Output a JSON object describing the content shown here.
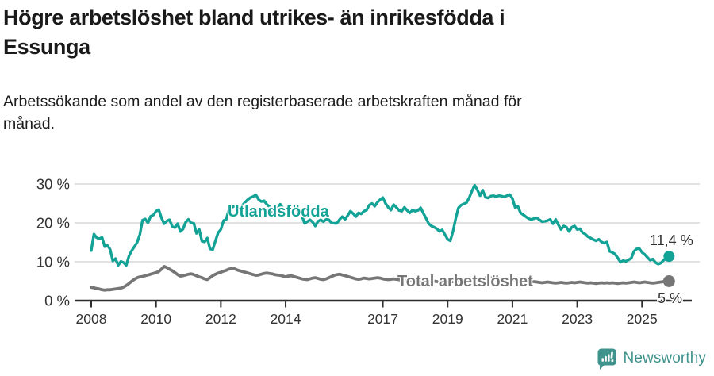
{
  "header": {
    "title_line1": "Högre arbetslöshet bland utrikes- än inrikesfödda i",
    "title_line2": "Essunga",
    "subtitle_line1": "Arbetssökande som andel av den registerbaserade arbetskraften månad för",
    "subtitle_line2": "månad."
  },
  "footer": {
    "brand": "Newsworthy",
    "logo_icon": "newsworthy-speech-bubble-chart-icon"
  },
  "colors": {
    "series_foreign": "#13a296",
    "series_total": "#767676",
    "gridline": "#d8d8d8",
    "axis": "#2d2d2d",
    "axis_text": "#333333",
    "title_text": "#1a1a1a",
    "brand_teal": "#3f938c",
    "background": "#ffffff"
  },
  "chart_data": {
    "type": "line",
    "title": "Högre arbetslöshet bland utrikes- än inrikesfödda i Essunga",
    "subtitle": "Arbetssökande som andel av den registerbaserade arbetskraften månad för månad.",
    "unit": "%",
    "frequency": "monthly",
    "x_start": "2008-01",
    "x_end": "2025-11",
    "ylim": [
      0,
      32
    ],
    "grid": "horizontal",
    "y_ticks": [
      {
        "value": 0,
        "label": "0 %"
      },
      {
        "value": 10,
        "label": "10 %"
      },
      {
        "value": 20,
        "label": "20 %"
      },
      {
        "value": 30,
        "label": "30 %"
      }
    ],
    "x_ticks": [
      {
        "year": 2008,
        "label": "2008"
      },
      {
        "year": 2010,
        "label": "2010"
      },
      {
        "year": 2012,
        "label": "2012"
      },
      {
        "year": 2014,
        "label": "2014"
      },
      {
        "year": 2017,
        "label": "2017"
      },
      {
        "year": 2019,
        "label": "2019"
      },
      {
        "year": 2021,
        "label": "2021"
      },
      {
        "year": 2023,
        "label": "2023"
      },
      {
        "year": 2025,
        "label": "2025"
      }
    ],
    "series": [
      {
        "name": "Utlandsfödda",
        "color": "#13a296",
        "end_label": "11,4 %",
        "end_value": 11.4,
        "values": [
          12.9,
          17.1,
          16.2,
          15.9,
          16.3,
          13.9,
          14.2,
          13.2,
          10.2,
          10.8,
          9.1,
          10.1,
          9.8,
          9.1,
          11.5,
          12.9,
          13.9,
          15.0,
          17.0,
          20.7,
          21.0,
          20.0,
          21.7,
          22.0,
          23.0,
          23.4,
          21.3,
          19.8,
          20.5,
          20.8,
          19.1,
          18.8,
          19.8,
          17.8,
          18.4,
          20.2,
          20.9,
          20.0,
          19.9,
          17.3,
          18.3,
          15.3,
          15.1,
          16.1,
          13.3,
          13.1,
          15.4,
          17.5,
          18.3,
          20.6,
          20.9,
          23.6,
          24.0,
          24.3,
          24.0,
          23.6,
          24.5,
          25.3,
          26.0,
          26.5,
          26.8,
          27.2,
          26.0,
          25.5,
          25.7,
          24.8,
          24.2,
          22.8,
          22.2,
          23.6,
          24.8,
          23.8,
          22.4,
          22.0,
          22.6,
          23.4,
          24.3,
          23.2,
          21.9,
          19.9,
          20.3,
          20.8,
          20.2,
          19.2,
          20.4,
          20.8,
          20.3,
          20.9,
          20.8,
          20.0,
          19.9,
          19.9,
          20.9,
          21.6,
          20.9,
          21.9,
          23.0,
          22.4,
          21.6,
          22.6,
          22.3,
          23.0,
          23.3,
          24.6,
          25.0,
          24.3,
          25.3,
          26.0,
          26.5,
          25.0,
          24.0,
          23.3,
          24.7,
          24.0,
          23.2,
          23.0,
          24.0,
          23.2,
          22.6,
          23.3,
          23.0,
          23.2,
          23.9,
          22.5,
          21.2,
          19.8,
          19.2,
          18.9,
          18.5,
          17.8,
          18.2,
          17.0,
          15.8,
          15.4,
          17.8,
          21.2,
          23.9,
          24.6,
          24.9,
          25.2,
          26.5,
          28.2,
          29.7,
          28.5,
          27.0,
          28.4,
          26.6,
          26.4,
          26.9,
          27.0,
          26.8,
          27.0,
          26.9,
          26.7,
          27.0,
          27.3,
          26.3,
          24.0,
          24.3,
          22.6,
          22.1,
          21.6,
          21.1,
          20.9,
          21.1,
          21.3,
          20.8,
          20.3,
          20.4,
          20.6,
          20.9,
          19.8,
          20.9,
          19.5,
          18.3,
          19.2,
          18.9,
          17.8,
          18.9,
          19.2,
          18.3,
          18.5,
          17.5,
          17.1,
          16.4,
          16.1,
          15.7,
          15.4,
          15.8,
          15.1,
          14.8,
          15.1,
          12.7,
          12.4,
          12.0,
          11.0,
          9.9,
          10.3,
          10.1,
          10.5,
          10.9,
          12.7,
          13.3,
          13.4,
          12.4,
          11.9,
          11.1,
          10.4,
          10.7,
          9.8,
          9.4,
          9.7,
          10.4,
          10.8,
          11.4
        ]
      },
      {
        "name": "Total arbetslöshet",
        "color": "#767676",
        "end_label": "5 %",
        "end_value": 5.0,
        "values": [
          3.4,
          3.3,
          3.1,
          3.0,
          2.8,
          2.7,
          2.8,
          2.8,
          2.9,
          3.0,
          3.1,
          3.2,
          3.5,
          3.9,
          4.4,
          5.0,
          5.5,
          5.9,
          6.1,
          6.2,
          6.4,
          6.6,
          6.8,
          7.0,
          7.2,
          7.5,
          8.1,
          8.8,
          8.5,
          8.1,
          7.7,
          7.2,
          6.7,
          6.3,
          6.4,
          6.6,
          6.8,
          6.9,
          6.7,
          6.4,
          6.1,
          5.9,
          5.6,
          5.4,
          5.9,
          6.4,
          6.8,
          7.1,
          7.3,
          7.6,
          7.8,
          8.1,
          8.3,
          8.2,
          7.9,
          7.7,
          7.5,
          7.3,
          7.1,
          6.9,
          6.7,
          6.5,
          6.6,
          6.8,
          7.0,
          7.1,
          7.0,
          6.9,
          6.7,
          6.6,
          6.5,
          6.3,
          6.1,
          6.3,
          6.4,
          6.2,
          6.0,
          5.8,
          5.6,
          5.5,
          5.4,
          5.6,
          5.8,
          5.9,
          5.7,
          5.5,
          5.4,
          5.6,
          5.9,
          6.2,
          6.5,
          6.7,
          6.8,
          6.6,
          6.4,
          6.2,
          6.0,
          5.8,
          5.6,
          5.5,
          5.6,
          5.8,
          5.7,
          5.6,
          5.7,
          5.8,
          5.9,
          5.8,
          5.6,
          5.5,
          5.4,
          5.5,
          5.6,
          5.5,
          5.4,
          5.2,
          5.1,
          5.2,
          5.3,
          5.4,
          5.3,
          5.2,
          5.1,
          5.0,
          4.9,
          5.0,
          5.1,
          5.0,
          4.9,
          4.8,
          4.9,
          5.0,
          4.9,
          4.8,
          4.9,
          5.0,
          5.1,
          5.2,
          5.3,
          5.2,
          5.1,
          5.2,
          5.3,
          5.4,
          5.5,
          5.6,
          5.8,
          6.0,
          5.9,
          5.8,
          5.7,
          5.6,
          5.5,
          5.4,
          5.3,
          5.2,
          5.3,
          5.2,
          5.1,
          5.0,
          4.9,
          4.8,
          4.9,
          5.0,
          4.9,
          4.8,
          4.7,
          4.6,
          4.7,
          4.8,
          4.7,
          4.6,
          4.5,
          4.6,
          4.7,
          4.6,
          4.5,
          4.6,
          4.7,
          4.6,
          4.7,
          4.8,
          4.7,
          4.6,
          4.5,
          4.6,
          4.5,
          4.4,
          4.5,
          4.6,
          4.5,
          4.6,
          4.5,
          4.6,
          4.5,
          4.4,
          4.5,
          4.6,
          4.5,
          4.6,
          4.7,
          4.8,
          4.7,
          4.6,
          4.7,
          4.8,
          4.7,
          4.6,
          4.5,
          4.6,
          4.7,
          4.8,
          4.9,
          5.0,
          5.0
        ]
      }
    ]
  }
}
